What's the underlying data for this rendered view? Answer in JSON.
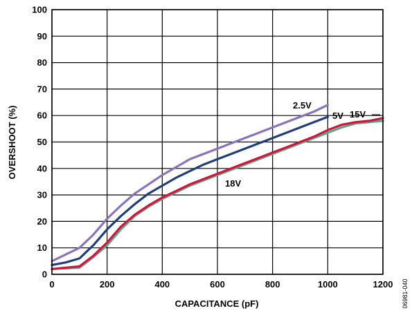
{
  "chart_data": {
    "type": "line",
    "title": "",
    "xlabel": "CAPACITANCE (pF)",
    "ylabel": "OVERSHOOT (%)",
    "xlim": [
      0,
      1200
    ],
    "ylim": [
      0,
      100
    ],
    "xticks": [
      0,
      200,
      400,
      600,
      800,
      1000,
      1200
    ],
    "yticks": [
      0,
      10,
      20,
      30,
      40,
      50,
      60,
      70,
      80,
      90,
      100
    ],
    "grid": true,
    "figure_id": "06981-040",
    "series": [
      {
        "name": "2.5V",
        "color": "#8b73bc",
        "x": [
          0,
          50,
          100,
          150,
          200,
          250,
          300,
          350,
          400,
          450,
          500,
          550,
          600,
          650,
          700,
          750,
          800,
          850,
          900,
          950,
          1000
        ],
        "y": [
          5,
          7.5,
          10,
          15,
          21,
          26,
          30.5,
          34,
          37.5,
          40.5,
          43.5,
          45.5,
          47.5,
          49.5,
          51.5,
          53.5,
          55.5,
          57.5,
          59.5,
          61.5,
          64
        ]
      },
      {
        "name": "5V",
        "color": "#1f3e7a",
        "x": [
          0,
          50,
          100,
          150,
          200,
          250,
          300,
          350,
          400,
          450,
          500,
          550,
          600,
          650,
          700,
          750,
          800,
          850,
          900,
          950,
          1000
        ],
        "y": [
          3.5,
          4.5,
          6,
          11,
          17,
          22,
          26.5,
          30.5,
          33.5,
          36.5,
          39,
          41.5,
          43.5,
          45.5,
          47.5,
          49.5,
          51.5,
          53.5,
          55.5,
          57.5,
          59.5
        ]
      },
      {
        "name": "15V",
        "color": "#d2143c",
        "x": [
          0,
          100,
          150,
          200,
          250,
          300,
          350,
          400,
          450,
          500,
          550,
          600,
          650,
          700,
          750,
          800,
          850,
          900,
          950,
          1000,
          1050,
          1100,
          1150,
          1200
        ],
        "y": [
          2,
          3,
          7,
          12,
          18,
          22.5,
          26,
          29,
          31.5,
          34,
          36,
          38,
          40,
          42,
          44,
          46,
          48,
          50,
          52,
          54.5,
          56.5,
          57.5,
          58,
          59
        ]
      },
      {
        "name": "18V",
        "color": "#5ea688",
        "x": [
          0,
          100,
          150,
          200,
          250,
          300,
          350,
          400,
          450,
          500,
          550,
          600,
          650,
          700,
          750,
          800,
          850,
          900,
          950,
          1000,
          1050,
          1100,
          1150,
          1200
        ],
        "y": [
          2,
          2.5,
          6.5,
          11,
          17,
          22,
          25.5,
          28.5,
          31,
          33.5,
          35.5,
          37.5,
          39.5,
          41.5,
          43.5,
          45.5,
          47.5,
          49.5,
          51.5,
          53.5,
          55.5,
          57,
          57.5,
          58
        ]
      }
    ],
    "annotations": [
      {
        "text": "2.5V"
      },
      {
        "text": "5V"
      },
      {
        "text": "15V"
      },
      {
        "text": "18V"
      }
    ]
  }
}
